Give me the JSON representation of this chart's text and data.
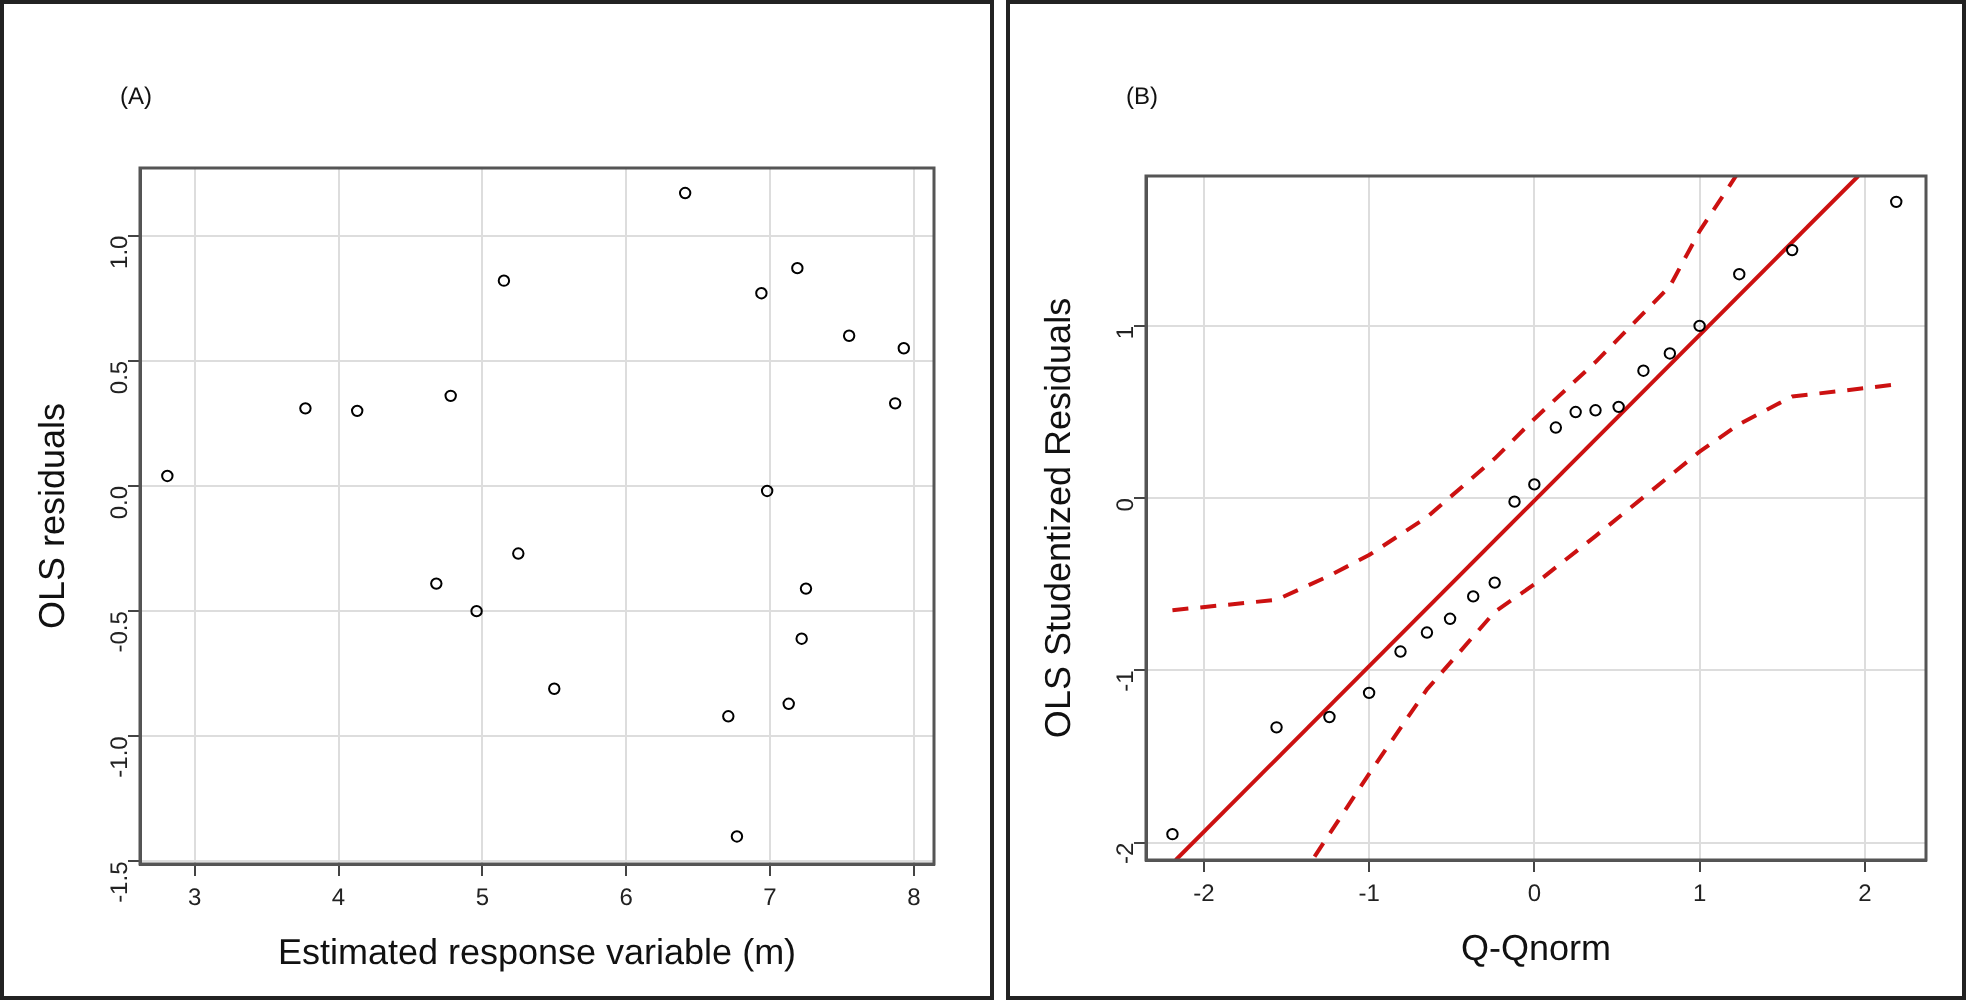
{
  "chart_data": [
    {
      "type": "scatter",
      "title": "(A)",
      "xlabel": "Estimated response variable (m)",
      "ylabel": "OLS residuals",
      "x": [
        2.81,
        3.77,
        4.13,
        4.78,
        4.68,
        4.96,
        5.15,
        5.25,
        5.5,
        6.41,
        6.71,
        6.77,
        6.94,
        6.98,
        7.19,
        7.25,
        7.22,
        7.13,
        7.55,
        7.93,
        7.87
      ],
      "values": [
        0.04,
        0.31,
        0.3,
        0.36,
        -0.39,
        -0.5,
        0.82,
        -0.27,
        -0.81,
        1.17,
        -0.92,
        -1.4,
        0.77,
        -0.02,
        0.87,
        -0.41,
        -0.61,
        -0.87,
        0.6,
        0.55,
        0.33
      ],
      "color": "#000000",
      "marker": "circle",
      "xlim": [
        2.62,
        8.14
      ],
      "xticks": [
        3,
        4,
        5,
        6,
        7,
        8
      ],
      "ylim": [
        -1.51,
        1.27
      ],
      "yticks": [
        {
          "value": -1.5,
          "label": "-1.5"
        },
        {
          "value": -1,
          "label": "-1.0"
        },
        {
          "value": -0.5,
          "label": "-0.5"
        },
        {
          "value": 0,
          "label": "0.0"
        },
        {
          "value": 0.5,
          "label": "0.5"
        },
        {
          "value": 1,
          "label": "1.0"
        }
      ],
      "grid": true
    },
    {
      "type": "scatter",
      "title": "(B)",
      "xlabel": "Q-Qnorm",
      "ylabel": "OLS Studentized Residuals",
      "series": [
        {
          "type": "scatter",
          "color": "#000000",
          "marker": "circle",
          "x": [
            -2.19,
            -1.56,
            -1.24,
            -1.0,
            -0.81,
            -0.65,
            -0.51,
            -0.37,
            -0.24,
            -0.12,
            0.0,
            0.13,
            0.25,
            0.37,
            0.51,
            0.66,
            0.82,
            1.0,
            1.24,
            1.56,
            2.19
          ],
          "values": [
            -1.95,
            -1.33,
            -1.27,
            -1.13,
            -0.89,
            -0.78,
            -0.7,
            -0.57,
            -0.49,
            -0.02,
            0.08,
            0.41,
            0.5,
            0.51,
            0.53,
            0.74,
            0.84,
            1.0,
            1.3,
            1.44,
            1.72
          ]
        },
        {
          "type": "line",
          "color": "#cc1111",
          "marker": "none",
          "line_style": "solid",
          "x": [
            -2.17,
            1.96
          ],
          "values": [
            -2.1,
            1.87
          ]
        },
        {
          "type": "line",
          "color": "#cc1111",
          "marker": "none",
          "line_style": "dashed",
          "x": [
            -2.19,
            -1.56,
            -1.24,
            -1.0,
            -0.65,
            -0.24,
            0.0,
            0.37,
            0.82,
            1.0,
            1.22
          ],
          "values": [
            -0.65,
            -0.59,
            -0.45,
            -0.33,
            -0.11,
            0.23,
            0.46,
            0.79,
            1.23,
            1.55,
            1.87
          ]
        },
        {
          "type": "line",
          "color": "#cc1111",
          "marker": "none",
          "line_style": "dashed",
          "x": [
            -1.33,
            -1.0,
            -0.65,
            -0.24,
            0.0,
            0.37,
            0.82,
            1.0,
            1.24,
            1.56,
            2.19
          ],
          "values": [
            -2.08,
            -1.6,
            -1.11,
            -0.66,
            -0.5,
            -0.22,
            0.13,
            0.27,
            0.43,
            0.59,
            0.66
          ]
        }
      ],
      "xlim": [
        -2.35,
        2.37
      ],
      "xticks": [
        -2,
        -1,
        0,
        1,
        2
      ],
      "ylim": [
        -2.1,
        1.87
      ],
      "yticks": [
        -2,
        -1,
        0,
        1
      ],
      "grid": true
    }
  ]
}
